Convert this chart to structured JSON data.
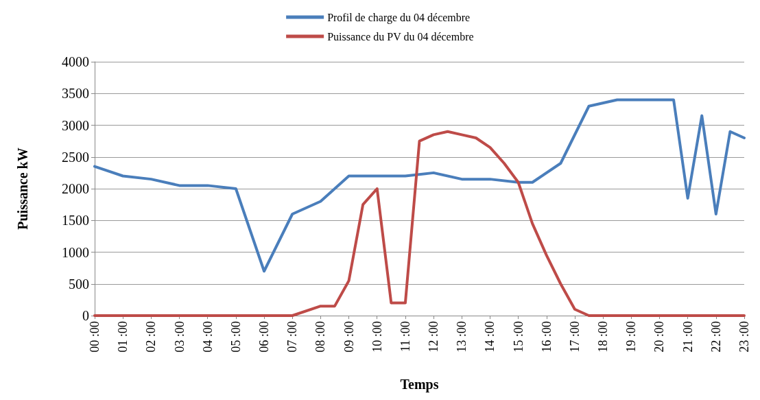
{
  "chart_data": {
    "type": "line",
    "xlabel": "Temps",
    "ylabel": "Puissance kW",
    "categories": [
      "00 :00",
      null,
      "01 :00",
      null,
      "02 :00",
      null,
      "03 :00",
      null,
      "04 :00",
      null,
      "05 :00",
      null,
      "06 :00",
      null,
      "07 :00",
      null,
      "08 :00",
      null,
      "09 :00",
      null,
      "10 :00",
      null,
      "11 :00",
      null,
      "12 :00",
      null,
      "13 :00",
      null,
      "14 :00",
      null,
      "15 :00",
      null,
      "16 :00",
      null,
      "17 :00",
      null,
      "18 :00",
      null,
      "19 :00",
      null,
      "20 :00",
      null,
      "21 :00",
      null,
      "22 :00",
      null,
      "23 :00"
    ],
    "ylim": [
      0,
      4000
    ],
    "yticks": [
      0,
      500,
      1000,
      1500,
      2000,
      2500,
      3000,
      3500,
      4000
    ],
    "grid": "y",
    "legend": "top",
    "marker": "none",
    "line_style": "solid",
    "series": [
      {
        "name": "Profil de charge du 04 décembre",
        "color": "#4a7ebb",
        "values": [
          2350,
          null,
          2200,
          null,
          2150,
          null,
          2050,
          null,
          2050,
          null,
          2000,
          null,
          700,
          null,
          1600,
          null,
          1800,
          null,
          2200,
          null,
          2200,
          null,
          2200,
          null,
          2250,
          null,
          2150,
          null,
          2150,
          null,
          2100,
          2100,
          null,
          2400,
          null,
          3300,
          null,
          3400,
          null,
          3400,
          null,
          3400,
          1850,
          3150,
          1600,
          2900,
          2800
        ]
      },
      {
        "name": "Puissance du PV du 04 décembre",
        "color": "#be4b48",
        "values": [
          0,
          0,
          0,
          0,
          0,
          0,
          0,
          0,
          0,
          0,
          0,
          0,
          0,
          0,
          0,
          null,
          150,
          150,
          550,
          1750,
          2000,
          200,
          200,
          2750,
          2850,
          2900,
          2850,
          2800,
          2650,
          2400,
          2100,
          1450,
          950,
          500,
          100,
          0,
          0,
          0,
          0,
          0,
          0,
          0,
          0,
          0,
          0,
          0,
          0
        ]
      }
    ]
  }
}
